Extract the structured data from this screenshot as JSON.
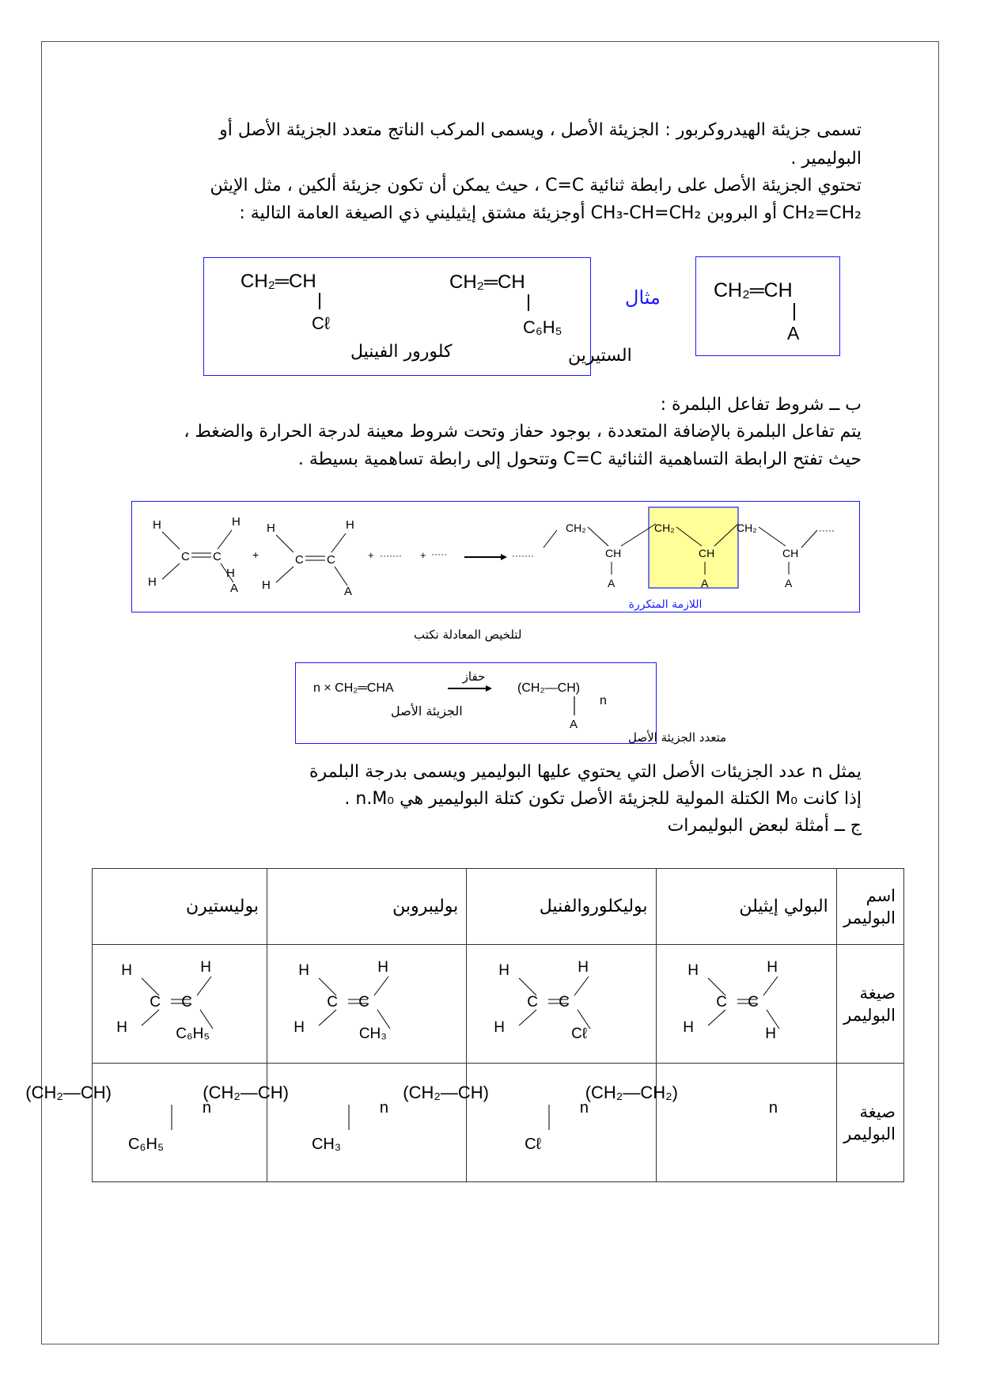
{
  "intro": {
    "line1": "تسمى جزيئة الهيدروكربور : الجزيئة الأصل ، ويسمى المركب الناتج متعدد الجزيئة الأصل أو",
    "line2": "البوليمير .",
    "line3": "تحتوي الجزيئة الأصل على رابطة ثنائية C=C ، حيث يمكن أن تكون جزيئة ألكين ، مثل الإيثن",
    "line4": "CH₂=CH₂ أو البروبن CH₃-CH=CH₂ أوجزيئة مشتق إيثيليني ذي الصيغة العامة التالية :"
  },
  "examples": {
    "general": {
      "formula": "CH₂═CH",
      "sub": "A"
    },
    "label": "مثال",
    "items": [
      {
        "formula": "CH₂═CH",
        "sub": "C6H5",
        "sub_display": "C₆H₅",
        "name": "الستيرين"
      },
      {
        "formula": "CH₂═CH",
        "sub": "Cl",
        "sub_display": "Cℓ",
        "name": "كلورور الفينيل"
      }
    ]
  },
  "conditions": {
    "title": "ب ــ شروط تفاعل البلمرة :",
    "line1": "يتم تفاعل البلمرة بالإضافة المتعددة ، بوجود حفاز وتحت شروط معينة لدرجة الحرارة والضغط ،",
    "line2": "حيث تفتح الرابطة التساهمية الثنائية C=C وتتحول إلى رابطة تساهمية بسيطة ."
  },
  "reaction": {
    "H": "H",
    "C": "C",
    "A": "A",
    "plus": "+",
    "dots": "·······",
    "dots_short": "·····",
    "CH2": "CH₂",
    "CH": "CH",
    "repeat_unit_label": "اللازمة المتكررة",
    "highlight_color": "#ffff99"
  },
  "summary": {
    "caption": "لتلخيص المعادلة نكتب",
    "monomer": "n × CH₂═CHA",
    "monomer_label": "الجزيئة الأصل",
    "catalyst": "حفاز",
    "polymer": "(CH₂—CH)",
    "n": "n",
    "sub": "A",
    "polymer_label": "متعدد الجزيئة الأصل"
  },
  "degree": {
    "line1": "يمثل n عدد الجزيئات الأصل التي يحتوي عليها البوليمير ويسمى بدرجة البلمرة",
    "line2": "إذا كانت M₀ الكتلة المولية للجزيئة الأصل تكون كتلة البوليمير هي n.M₀ .",
    "line3": "ج ــ أمثلة لبعض البوليمرات"
  },
  "table": {
    "row_labels": {
      "name": "اسم البوليمر",
      "monomer": "صيغة البوليمر",
      "polymer": "صيغة البوليمر"
    },
    "columns": [
      {
        "name": "البولي إيثيلن",
        "sub": "H",
        "polymer": "(CH₂—CH₂)",
        "n": "n",
        "chain_sub": ""
      },
      {
        "name": "بوليكلوروالفنيل",
        "sub": "Cℓ",
        "polymer": "(CH₂—CH)",
        "n": "n",
        "chain_sub": "Cℓ"
      },
      {
        "name": "بوليبروبن",
        "sub": "CH₃",
        "polymer": "(CH₂—CH)",
        "n": "n",
        "chain_sub": "CH₃"
      },
      {
        "name": "بوليستيرن",
        "sub": "C₆H₅",
        "polymer": "(CH₂—CH)",
        "n": "n",
        "chain_sub": "C₆H₅"
      }
    ]
  },
  "colors": {
    "frame_blue": "#1a1aff",
    "label_blue": "#1a1aff"
  }
}
